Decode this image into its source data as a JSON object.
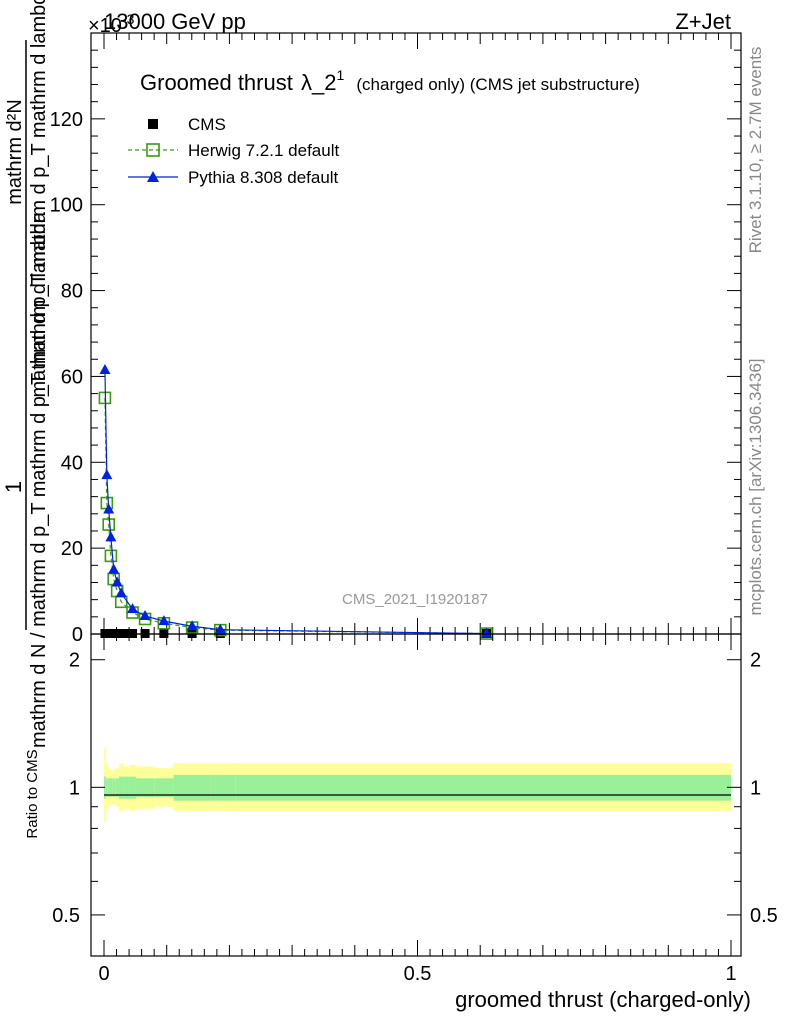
{
  "header": {
    "energy": "13000 GeV pp",
    "process": "Z+Jet",
    "multiplier": "×10",
    "multiplier_exp": "-3"
  },
  "side_text": {
    "rivet": "Rivet 3.1.10, ≥ 2.7M events",
    "mcplots": "mcplots.cern.ch [arXiv:1306.3436]"
  },
  "watermark": "CMS_2021_I1920187",
  "colors": {
    "cms": "#000000",
    "herwig": "#3a9a10",
    "pythia": "#0022dd",
    "band_inner": "#99f099",
    "band_outer": "#ffff99"
  },
  "chart_data": [
    {
      "type": "line",
      "title_main": "Groomed thrust",
      "title_lambda": "λ_2",
      "title_sup": "1",
      "title_suffix": "(charged only) (CMS jet substructure)",
      "ylabel_lines": [
        "1",
        "mathrm d N / mathrm d p_T mathrm d p_T mathrm d lambda",
        "mathrm d²N",
        "mathrm d N / mathrm d p_T mathrm d lambda"
      ],
      "ylabel_numerator_top": "mathrm d²N",
      "ylabel_numerator_bottom": "mathrm d p_T mathrm d p_T mathrm d lambda",
      "ylabel_one": "1",
      "ylabel_denominator": "mathrm d N / mathrm d p_T mathrm d p_T mathrm d lambda",
      "xlim": [
        0,
        1
      ],
      "ylim": [
        0,
        140
      ],
      "yticks": [
        0,
        20,
        40,
        60,
        80,
        100,
        120
      ],
      "legend_position": "top-left",
      "series": [
        {
          "name": "CMS",
          "marker": "square",
          "x": [
            0.0015,
            0.0045,
            0.0075,
            0.011,
            0.0155,
            0.021,
            0.0275,
            0.0355,
            0.0455,
            0.0655,
            0.0955,
            0.1405,
            0.1855,
            0.61
          ],
          "y": [
            0.0,
            0.0,
            0.0,
            0.0,
            0.0,
            0.0,
            0.0,
            0.0,
            0.0,
            0.0,
            0.0,
            0.0,
            0.0,
            0.0
          ]
        },
        {
          "name": "Herwig 7.2.1 default",
          "marker": "open-square",
          "x": [
            0.0015,
            0.0045,
            0.0075,
            0.011,
            0.0155,
            0.021,
            0.0275,
            0.0455,
            0.0655,
            0.0955,
            0.1405,
            0.1855,
            0.61
          ],
          "y": [
            55.0,
            30.5,
            25.5,
            18.2,
            12.8,
            10.0,
            7.5,
            5.0,
            3.5,
            2.5,
            1.5,
            0.9,
            0.1
          ]
        },
        {
          "name": "Pythia 8.308 default",
          "marker": "triangle",
          "x": [
            0.0015,
            0.0045,
            0.0075,
            0.011,
            0.0155,
            0.021,
            0.0275,
            0.0455,
            0.0655,
            0.0955,
            0.1405,
            0.1855,
            0.61
          ],
          "y": [
            61.5,
            37.0,
            29.0,
            22.5,
            15.0,
            12.0,
            9.5,
            5.8,
            4.2,
            3.0,
            1.8,
            1.0,
            0.1
          ]
        }
      ]
    },
    {
      "type": "area",
      "ylabel": "Ratio to CMS",
      "xlabel": "groomed thrust (charged-only)",
      "xlim": [
        0,
        1
      ],
      "ylim": [
        0.4,
        2.3
      ],
      "log_y": true,
      "yticks": [
        0.5,
        1,
        2
      ],
      "xticks": [
        0,
        0.5,
        1
      ],
      "reference_line": 1,
      "bins": [
        {
          "x0": 0.0,
          "x1": 0.003,
          "inner": [
            0.94,
            1.06
          ],
          "outer": [
            0.83,
            1.24
          ]
        },
        {
          "x0": 0.003,
          "x1": 0.006,
          "inner": [
            0.95,
            1.05
          ],
          "outer": [
            0.88,
            1.14
          ]
        },
        {
          "x0": 0.006,
          "x1": 0.009,
          "inner": [
            0.95,
            1.05
          ],
          "outer": [
            0.9,
            1.11
          ]
        },
        {
          "x0": 0.009,
          "x1": 0.013,
          "inner": [
            0.95,
            1.05
          ],
          "outer": [
            0.91,
            1.1
          ]
        },
        {
          "x0": 0.013,
          "x1": 0.018,
          "inner": [
            0.95,
            1.05
          ],
          "outer": [
            0.91,
            1.1
          ]
        },
        {
          "x0": 0.018,
          "x1": 0.024,
          "inner": [
            0.95,
            1.05
          ],
          "outer": [
            0.9,
            1.11
          ]
        },
        {
          "x0": 0.024,
          "x1": 0.031,
          "inner": [
            0.94,
            1.06
          ],
          "outer": [
            0.88,
            1.14
          ]
        },
        {
          "x0": 0.031,
          "x1": 0.04,
          "inner": [
            0.94,
            1.06
          ],
          "outer": [
            0.89,
            1.12
          ]
        },
        {
          "x0": 0.04,
          "x1": 0.051,
          "inner": [
            0.94,
            1.06
          ],
          "outer": [
            0.88,
            1.13
          ]
        },
        {
          "x0": 0.051,
          "x1": 0.08,
          "inner": [
            0.95,
            1.05
          ],
          "outer": [
            0.89,
            1.12
          ]
        },
        {
          "x0": 0.08,
          "x1": 0.111,
          "inner": [
            0.95,
            1.05
          ],
          "outer": [
            0.9,
            1.11
          ]
        },
        {
          "x0": 0.111,
          "x1": 0.17,
          "inner": [
            0.93,
            1.07
          ],
          "outer": [
            0.88,
            1.14
          ]
        },
        {
          "x0": 0.17,
          "x1": 0.21,
          "inner": [
            0.93,
            1.07
          ],
          "outer": [
            0.88,
            1.14
          ]
        },
        {
          "x0": 0.21,
          "x1": 1.0,
          "inner": [
            0.93,
            1.07
          ],
          "outer": [
            0.88,
            1.14
          ]
        }
      ]
    }
  ]
}
